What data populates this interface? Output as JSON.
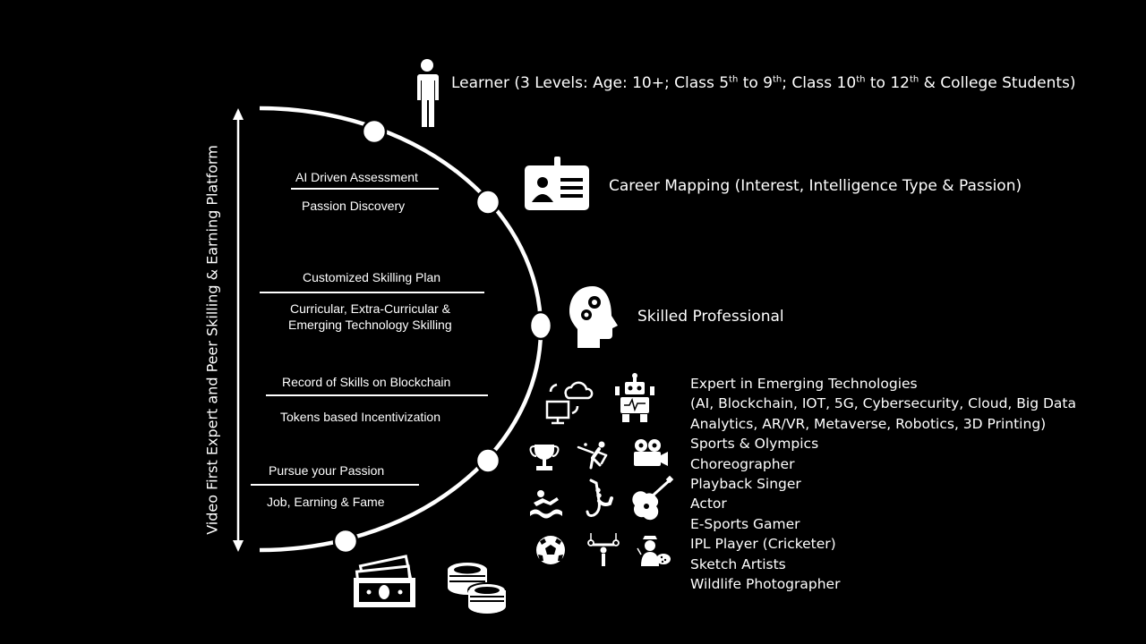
{
  "vertical_label": "Video First Expert and Peer Skilling & Earning Platform",
  "learner": {
    "prefix": "Learner (3 Levels: Age: 10+; Class 5",
    "sup1": "th",
    "mid1": " to 9",
    "sup2": "th",
    "mid2": ";  Class 10",
    "sup3": "th",
    "mid3": " to 12",
    "sup4": "th",
    "suffix": " & College Students)"
  },
  "career_mapping": "Career Mapping (Interest,  Intelligence Type & Passion)",
  "skilled_professional": "Skilled Professional",
  "stages": [
    {
      "top": "AI Driven Assessment",
      "bottom": "Passion Discovery"
    },
    {
      "top": "Customized Skilling Plan",
      "bottom_line1": "Curricular, Extra-Curricular &",
      "bottom_line2": "Emerging Technology Skilling"
    },
    {
      "top": "Record of Skills on Blockchain",
      "bottom": "Tokens based Incentivization"
    },
    {
      "top": "Pursue your Passion",
      "bottom": "Job, Earning & Fame"
    }
  ],
  "careers": [
    "Expert in Emerging Technologies",
    "(AI, Blockchain, IOT, 5G, Cybersecurity, Cloud, Big Data",
    "Analytics, AR/VR, Metaverse, Robotics, 3D Printing)",
    "Sports & Olympics",
    "Choreographer",
    "Playback Singer",
    "Actor",
    "E-Sports Gamer",
    "IPL Player (Cricketer)",
    "Sketch Artists",
    "Wildlife Photographer"
  ],
  "icons": {
    "learner": "person-icon",
    "career_mapping": "id-card-icon",
    "skilled": "head-gears-icon",
    "tech": [
      "cloud-computer-icon",
      "robot-icon"
    ],
    "activities": [
      "trophy-icon",
      "cricket-player-icon",
      "movie-camera-icon",
      "swimmer-icon",
      "saxophone-icon",
      "guitar-icon",
      "football-icon",
      "gymnast-rings-icon",
      "painter-icon"
    ],
    "money": [
      "banknotes-icon",
      "coins-icon"
    ]
  }
}
